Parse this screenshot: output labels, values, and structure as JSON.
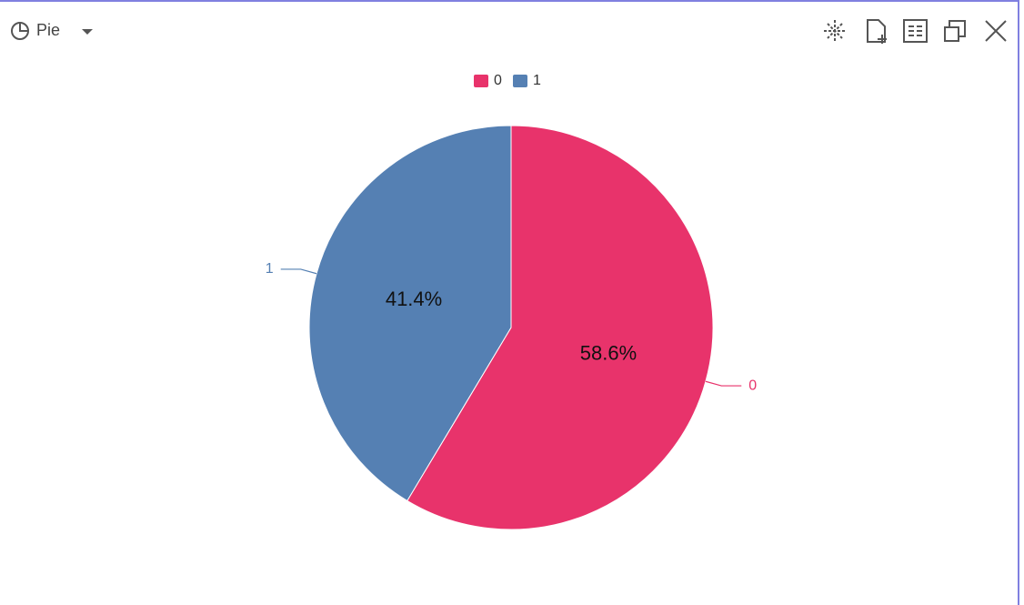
{
  "toolbar": {
    "chart_type_label": "Pie"
  },
  "chart_data": {
    "type": "pie",
    "categories": [
      "0",
      "1"
    ],
    "values": [
      58.6,
      41.4
    ],
    "value_labels": [
      "58.6%",
      "41.4%"
    ],
    "colors": [
      "#e8336b",
      "#5580b3"
    ],
    "legend": "top"
  }
}
